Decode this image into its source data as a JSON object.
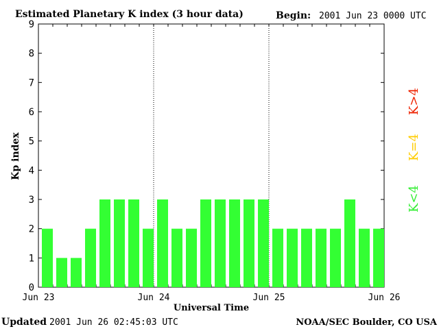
{
  "header": {
    "title": "Estimated Planetary K index (3 hour data)",
    "begin_label": "Begin:",
    "begin_value": "2001 Jun 23 0000 UTC"
  },
  "footer": {
    "updated_label": "Updated",
    "updated_value": "2001 Jun 26 02:45:03 UTC",
    "source": "NOAA/SEC Boulder, CO USA"
  },
  "legend": {
    "items": [
      {
        "label": "K<4",
        "color": "#33ee33"
      },
      {
        "label": "K=4",
        "color": "#ffcc00"
      },
      {
        "label": "K>4",
        "color": "#ee2200"
      }
    ]
  },
  "chart_data": {
    "type": "bar",
    "xlabel": "Universal Time",
    "ylabel": "Kp index",
    "ylim": [
      0,
      9
    ],
    "yticks": [
      0,
      1,
      2,
      3,
      4,
      5,
      6,
      7,
      8,
      9
    ],
    "x_tick_labels": [
      "Jun 23",
      "Jun 24",
      "Jun 25",
      "Jun 26"
    ],
    "bar_color": "#33ff33",
    "day_separators": "dotted vertical lines at Jun 24 and Jun 25",
    "categories": [
      "Jun 23 00",
      "Jun 23 03",
      "Jun 23 06",
      "Jun 23 09",
      "Jun 23 12",
      "Jun 23 15",
      "Jun 23 18",
      "Jun 23 21",
      "Jun 24 00",
      "Jun 24 03",
      "Jun 24 06",
      "Jun 24 09",
      "Jun 24 12",
      "Jun 24 15",
      "Jun 24 18",
      "Jun 24 21",
      "Jun 25 00",
      "Jun 25 03",
      "Jun 25 06",
      "Jun 25 09",
      "Jun 25 12",
      "Jun 25 15",
      "Jun 25 18",
      "Jun 25 21"
    ],
    "values": [
      2,
      1,
      1,
      2,
      3,
      3,
      3,
      2,
      3,
      2,
      2,
      3,
      3,
      3,
      3,
      3,
      2,
      2,
      2,
      2,
      2,
      3,
      2,
      2
    ]
  }
}
